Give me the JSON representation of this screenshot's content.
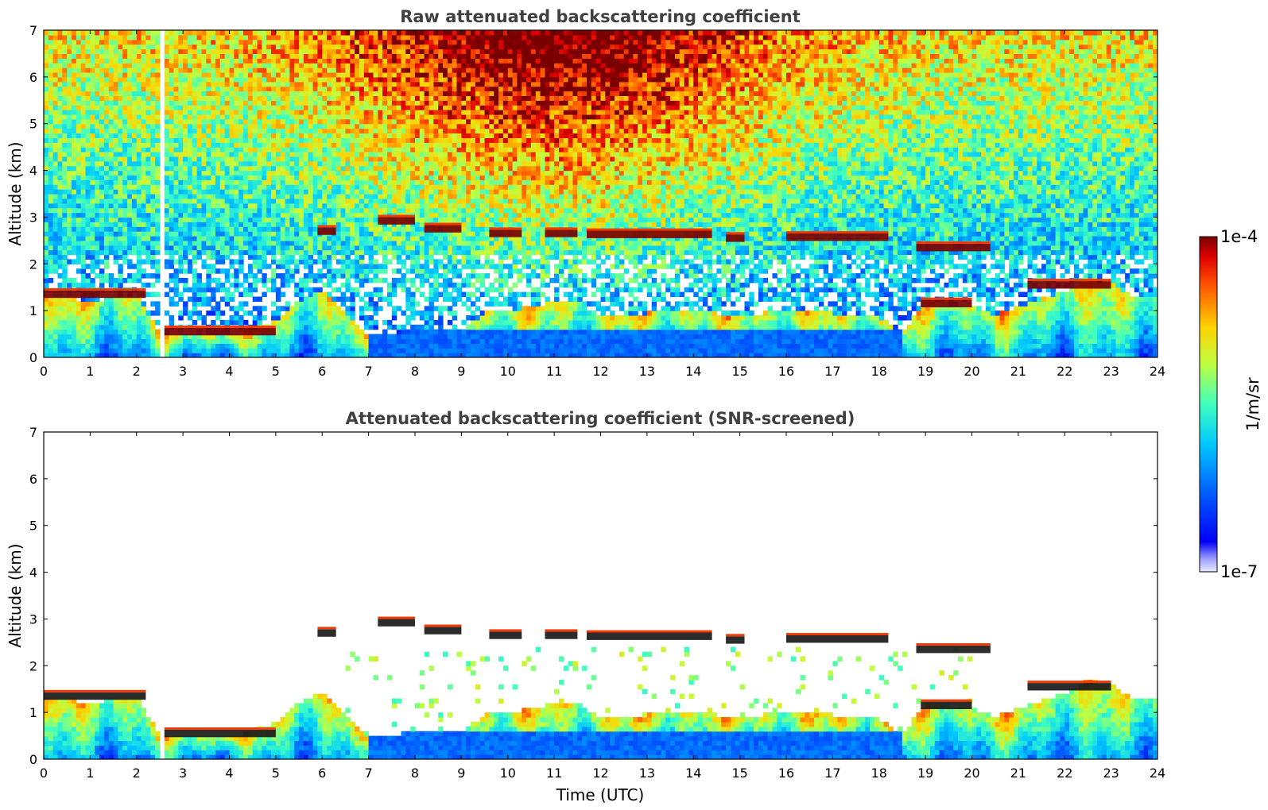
{
  "chart_data": [
    {
      "type": "heatmap",
      "title": "Raw attenuated backscattering coefficient",
      "xlabel": "",
      "ylabel": "Altitude (km)",
      "xlim": [
        0,
        24
      ],
      "ylim": [
        0,
        7
      ],
      "x_ticks": [
        0,
        1,
        2,
        3,
        4,
        5,
        6,
        7,
        8,
        9,
        10,
        11,
        12,
        13,
        14,
        15,
        16,
        17,
        18,
        19,
        20,
        21,
        22,
        23,
        24
      ],
      "y_ticks": [
        0,
        1,
        2,
        3,
        4,
        5,
        6,
        7
      ],
      "colorscale": "jet",
      "missing_data_gap_hours": [
        2.45,
        2.58
      ],
      "cloud_layers": [
        {
          "t0": 0.0,
          "t1": 2.2,
          "alt_km": 1.35,
          "log10_beta": -4.0
        },
        {
          "t0": 2.6,
          "t1": 5.0,
          "alt_km": 0.55,
          "log10_beta": -4.0
        },
        {
          "t0": 5.9,
          "t1": 6.3,
          "alt_km": 2.7,
          "log10_beta": -4.0
        },
        {
          "t0": 7.2,
          "t1": 8.0,
          "alt_km": 2.92,
          "log10_beta": -4.0
        },
        {
          "t0": 8.2,
          "t1": 9.0,
          "alt_km": 2.75,
          "log10_beta": -4.0
        },
        {
          "t0": 9.6,
          "t1": 10.3,
          "alt_km": 2.65,
          "log10_beta": -4.0
        },
        {
          "t0": 10.8,
          "t1": 11.5,
          "alt_km": 2.65,
          "log10_beta": -4.0
        },
        {
          "t0": 11.7,
          "t1": 14.4,
          "alt_km": 2.63,
          "log10_beta": -4.0
        },
        {
          "t0": 14.7,
          "t1": 15.1,
          "alt_km": 2.55,
          "log10_beta": -4.0
        },
        {
          "t0": 16.0,
          "t1": 18.2,
          "alt_km": 2.57,
          "log10_beta": -4.0
        },
        {
          "t0": 18.8,
          "t1": 20.4,
          "alt_km": 2.35,
          "log10_beta": -4.0
        },
        {
          "t0": 18.9,
          "t1": 20.0,
          "alt_km": 1.15,
          "log10_beta": -4.0
        },
        {
          "t0": 21.2,
          "t1": 23.0,
          "alt_km": 1.55,
          "log10_beta": -4.0
        }
      ],
      "colorbar": {
        "label": "1/m/sr",
        "min_label": "1e-7",
        "max_label": "1e-4",
        "min": 1e-07,
        "max": 0.0001
      }
    },
    {
      "type": "heatmap",
      "title": "Attenuated backscattering coefficient (SNR-screened)",
      "xlabel": "Time (UTC)",
      "ylabel": "Altitude (km)",
      "xlim": [
        0,
        24
      ],
      "ylim": [
        0,
        7
      ],
      "x_ticks": [
        0,
        1,
        2,
        3,
        4,
        5,
        6,
        7,
        8,
        9,
        10,
        11,
        12,
        13,
        14,
        15,
        16,
        17,
        18,
        19,
        20,
        21,
        22,
        23,
        24
      ],
      "y_ticks": [
        0,
        1,
        2,
        3,
        4,
        5,
        6,
        7
      ],
      "colorscale": "jet",
      "screened": "noise above the boundary layer and clouds removed (white)"
    }
  ]
}
